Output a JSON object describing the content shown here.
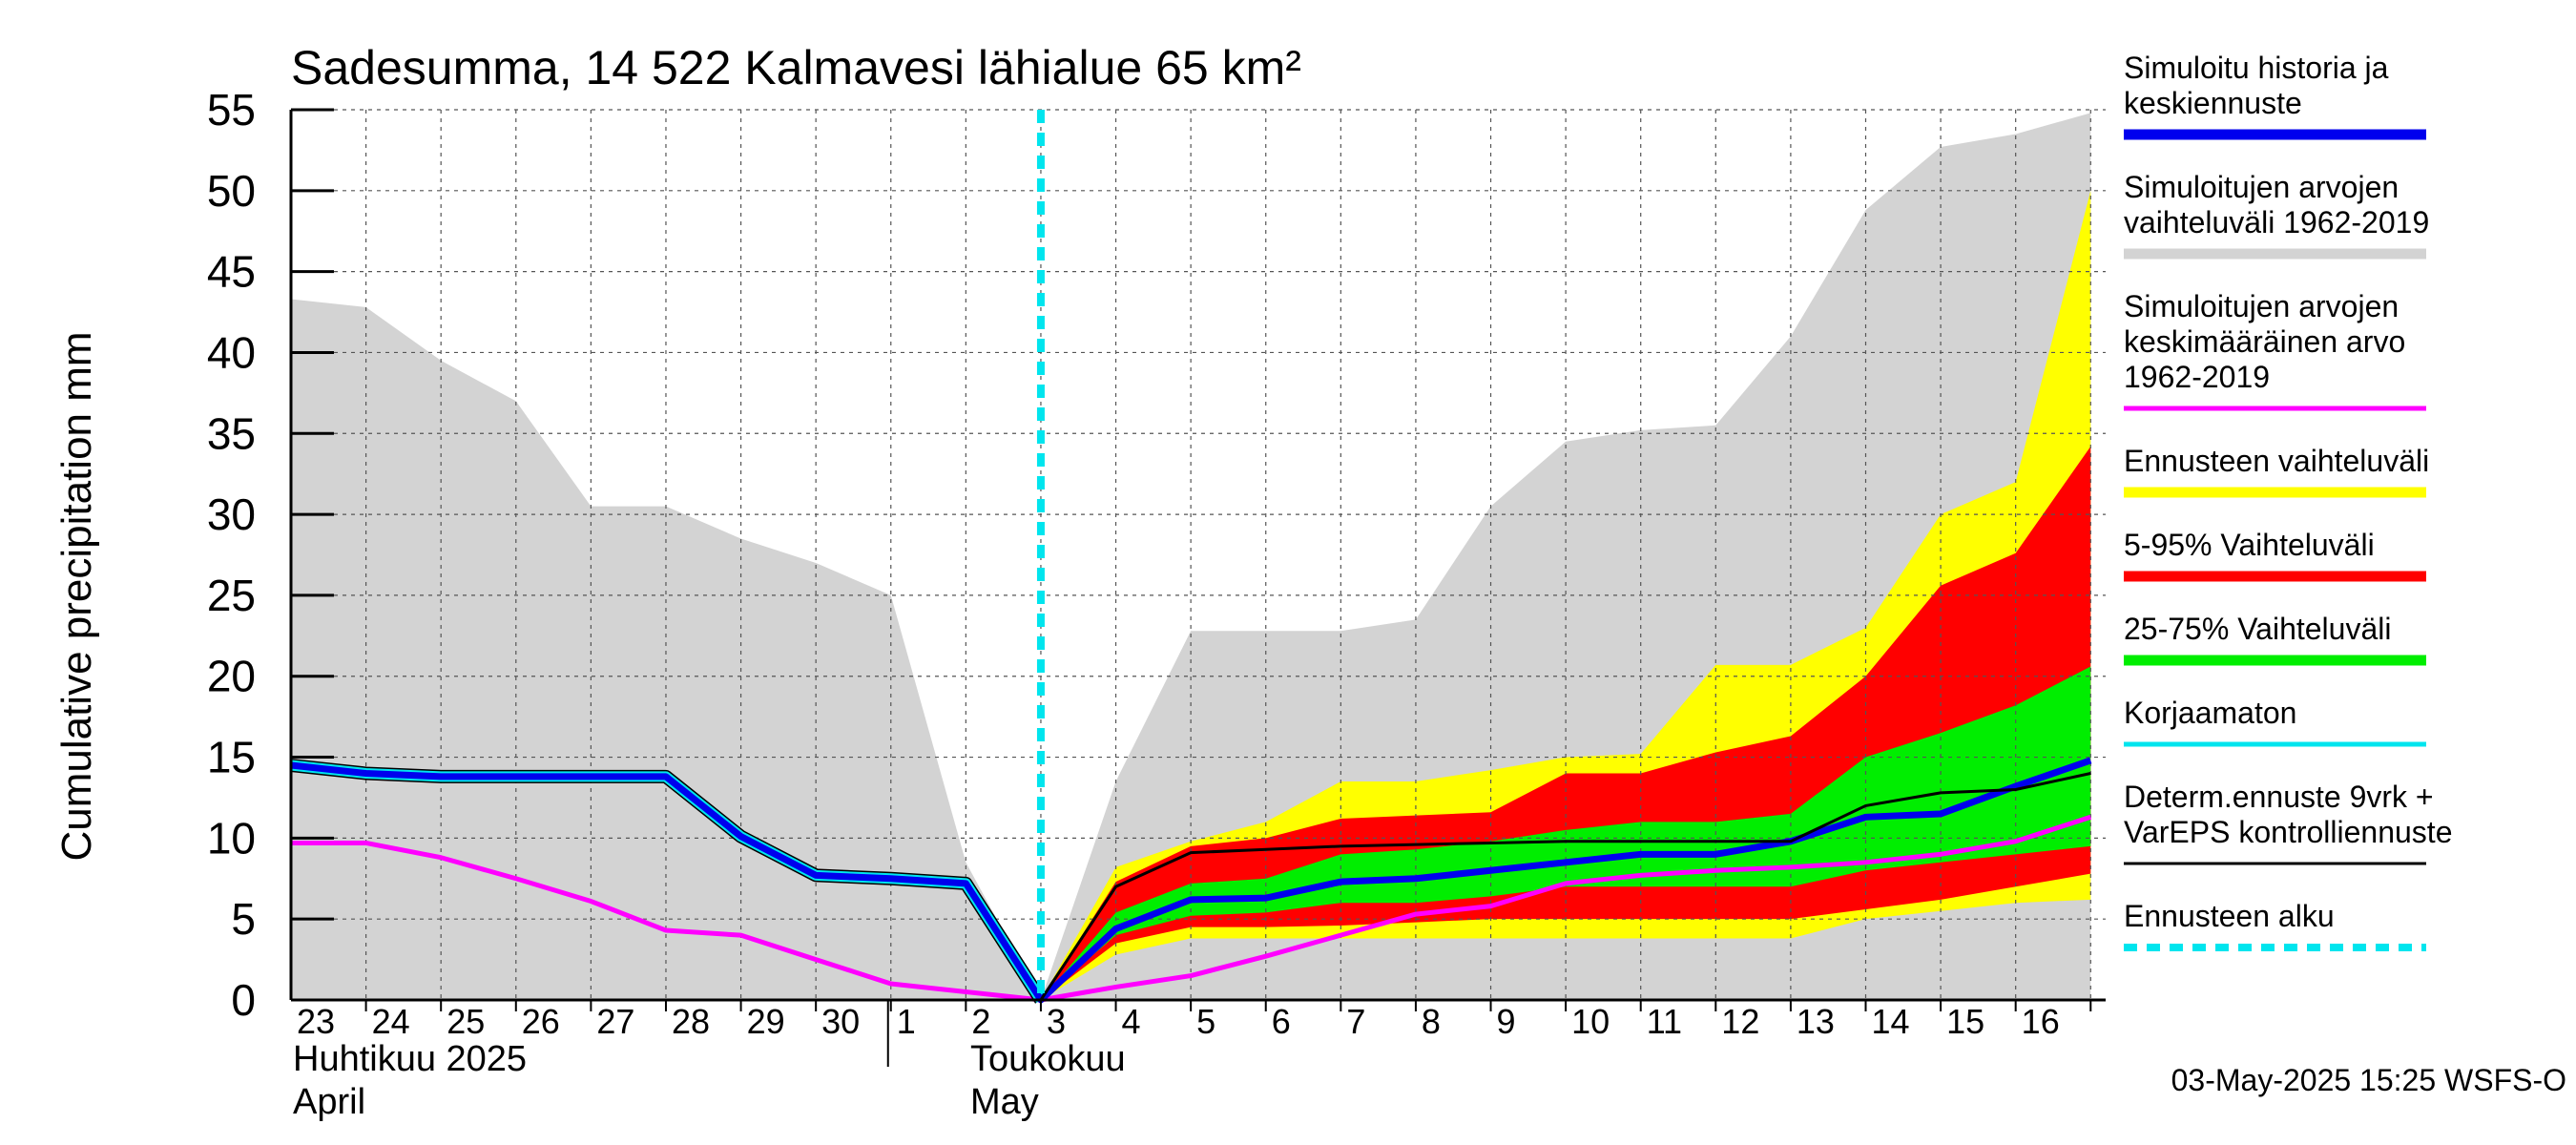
{
  "chart_data": {
    "type": "area",
    "title": "Sadesumma, 14 522 Kalmavesi lähialue 65 km²",
    "ylabel": "Cumulative precipitation   mm",
    "ylim": [
      0,
      55
    ],
    "yticks": [
      0,
      5,
      10,
      15,
      20,
      25,
      30,
      35,
      40,
      45,
      50,
      55
    ],
    "x_start_date": "2025-04-23",
    "x_days": 26,
    "day_labels": [
      {
        "i": 0,
        "label": "23"
      },
      {
        "i": 1,
        "label": "24"
      },
      {
        "i": 2,
        "label": "25"
      },
      {
        "i": 3,
        "label": "26"
      },
      {
        "i": 4,
        "label": "27"
      },
      {
        "i": 5,
        "label": "28"
      },
      {
        "i": 6,
        "label": "29"
      },
      {
        "i": 7,
        "label": "30"
      },
      {
        "i": 8,
        "label": "1"
      },
      {
        "i": 9,
        "label": "2"
      },
      {
        "i": 10,
        "label": "3"
      },
      {
        "i": 11,
        "label": "4"
      },
      {
        "i": 12,
        "label": "5"
      },
      {
        "i": 13,
        "label": "6"
      },
      {
        "i": 14,
        "label": "7"
      },
      {
        "i": 15,
        "label": "8"
      },
      {
        "i": 16,
        "label": "9"
      },
      {
        "i": 17,
        "label": "10"
      },
      {
        "i": 18,
        "label": "11"
      },
      {
        "i": 19,
        "label": "12"
      },
      {
        "i": 20,
        "label": "13"
      },
      {
        "i": 21,
        "label": "14"
      },
      {
        "i": 22,
        "label": "15"
      },
      {
        "i": 23,
        "label": "16"
      }
    ],
    "month_labels": {
      "april_fi": "Huhtikuu  2025",
      "april_en": "April",
      "may_fi": "Toukokuu",
      "may_en": "May"
    },
    "forecast_start_index": 10,
    "series": [
      {
        "name": "Simuloitujen arvojen vaihteluväli 1962-2019",
        "kind": "band",
        "color": "#d3d3d3",
        "x": [
          0,
          1,
          2,
          3,
          4,
          5,
          6,
          7,
          8,
          9,
          10,
          11,
          12,
          13,
          14,
          15,
          16,
          17,
          18,
          19,
          20,
          21,
          22,
          23,
          24
        ],
        "upper": [
          43.3,
          42.8,
          39.5,
          37,
          30.5,
          30.5,
          28.5,
          27,
          25,
          8.5,
          0,
          13.5,
          22.8,
          22.8,
          22.8,
          23.5,
          30.5,
          34.5,
          35.2,
          35.5,
          41,
          48.8,
          52.7,
          53.5,
          54.8
        ],
        "lower": [
          0,
          0,
          0,
          0,
          0,
          0,
          0,
          0,
          0,
          0,
          0,
          0,
          0,
          0,
          0,
          0,
          0,
          0,
          0,
          0,
          0,
          0,
          0,
          0,
          0
        ]
      },
      {
        "name": "Ennusteen vaihteluväli",
        "kind": "band",
        "color": "#ffff00",
        "x": [
          10,
          11,
          12,
          13,
          14,
          15,
          16,
          17,
          18,
          19,
          20,
          21,
          22,
          23,
          24
        ],
        "upper": [
          0,
          8.2,
          9.8,
          11,
          13.5,
          13.5,
          14.2,
          15,
          15.2,
          20.7,
          20.7,
          23,
          30,
          32,
          50
        ],
        "lower": [
          0,
          2.8,
          3.8,
          3.8,
          3.8,
          3.8,
          3.8,
          3.8,
          3.8,
          3.8,
          3.8,
          5,
          5.5,
          6,
          6.2
        ]
      },
      {
        "name": "5-95% Vaihteluväli",
        "kind": "band",
        "color": "#ff0000",
        "x": [
          10,
          11,
          12,
          13,
          14,
          15,
          16,
          17,
          18,
          19,
          20,
          21,
          22,
          23,
          24
        ],
        "upper": [
          0,
          7.3,
          9.5,
          10,
          11.2,
          11.4,
          11.6,
          14,
          14,
          15.3,
          16.3,
          20,
          25.6,
          27.6,
          34.2
        ],
        "lower": [
          0,
          3.5,
          4.5,
          4.5,
          4.6,
          4.8,
          5,
          5,
          5,
          5,
          5,
          5.6,
          6.2,
          7,
          7.8
        ]
      },
      {
        "name": "25-75% Vaihteluväli",
        "kind": "band",
        "color": "#00ee00",
        "x": [
          10,
          11,
          12,
          13,
          14,
          15,
          16,
          17,
          18,
          19,
          20,
          21,
          22,
          23,
          24
        ],
        "upper": [
          0,
          5.4,
          7.2,
          7.5,
          9,
          9.3,
          9.8,
          10.5,
          11,
          11,
          11.5,
          15,
          16.5,
          18.2,
          20.6
        ],
        "lower": [
          0,
          4,
          5.2,
          5.4,
          6,
          6,
          6.4,
          7,
          7,
          7,
          7,
          8,
          8.5,
          9,
          9.5
        ]
      },
      {
        "name": "Simuloitujen arvojen keskimääräinen arvo 1962-2019",
        "kind": "line",
        "color": "#ff00ff",
        "width": 5,
        "x": [
          0,
          1,
          2,
          3,
          4,
          5,
          6,
          7,
          8,
          9,
          10,
          11,
          12,
          13,
          14,
          15,
          16,
          17,
          18,
          19,
          20,
          21,
          22,
          23,
          24
        ],
        "values": [
          9.7,
          9.7,
          8.8,
          7.5,
          6.1,
          4.3,
          4,
          2.5,
          1,
          0.5,
          0,
          0.8,
          1.5,
          2.7,
          4,
          5.3,
          5.8,
          7.2,
          7.7,
          8,
          8.2,
          8.5,
          9,
          9.8,
          11.3
        ]
      },
      {
        "name": "Korjaamaton",
        "kind": "line",
        "color": "#00e5ee",
        "width": 11,
        "x": [
          0,
          1,
          2,
          3,
          4,
          5,
          6,
          7,
          8,
          9,
          10
        ],
        "values": [
          14.5,
          14,
          13.8,
          13.8,
          13.8,
          13.8,
          10.1,
          7.7,
          7.5,
          7.2,
          0
        ]
      },
      {
        "name": "Simuloitu historia ja keskiennuste",
        "kind": "line",
        "color": "#0000ee",
        "width": 7,
        "x": [
          0,
          1,
          2,
          3,
          4,
          5,
          6,
          7,
          8,
          9,
          10,
          11,
          12,
          13,
          14,
          15,
          16,
          17,
          18,
          19,
          20,
          21,
          22,
          23,
          24
        ],
        "values": [
          14.5,
          14,
          13.8,
          13.8,
          13.8,
          13.8,
          10.1,
          7.7,
          7.5,
          7.2,
          0,
          4.4,
          6.2,
          6.3,
          7.3,
          7.5,
          8,
          8.5,
          9,
          9,
          9.8,
          11.3,
          11.5,
          13.2,
          14.8
        ]
      },
      {
        "name": "Determ.ennuste 9vrk + VarEPS kontrolliennuste",
        "kind": "line",
        "color": "#000000",
        "width": 3,
        "x": [
          10,
          11,
          12,
          13,
          14,
          15,
          16,
          17,
          18,
          19,
          20,
          21,
          22,
          23,
          24
        ],
        "values": [
          0,
          7,
          9.1,
          9.3,
          9.5,
          9.6,
          9.7,
          9.8,
          9.8,
          9.8,
          9.8,
          12,
          12.8,
          13,
          14
        ]
      }
    ],
    "legend": {
      "position": "right",
      "items": [
        {
          "label": [
            "Simuloitu historia ja",
            "keskiennuste"
          ],
          "color": "#0000ee",
          "style": "thick"
        },
        {
          "label": [
            "Simuloitujen arvojen",
            "vaihteluväli 1962-2019"
          ],
          "color": "#d3d3d3",
          "style": "thick"
        },
        {
          "label": [
            "Simuloitujen arvojen",
            "keskimääräinen arvo",
            "   1962-2019"
          ],
          "color": "#ff00ff",
          "style": "line"
        },
        {
          "label": [
            "Ennusteen vaihteluväli"
          ],
          "color": "#ffff00",
          "style": "thick"
        },
        {
          "label": [
            "5-95% Vaihteluväli"
          ],
          "color": "#ff0000",
          "style": "thick"
        },
        {
          "label": [
            "25-75% Vaihteluväli"
          ],
          "color": "#00ee00",
          "style": "thick"
        },
        {
          "label": [
            "Korjaamaton"
          ],
          "color": "#00e5ee",
          "style": "line"
        },
        {
          "label": [
            "Determ.ennuste 9vrk +",
            "VarEPS kontrolliennuste"
          ],
          "color": "#000000",
          "style": "thin"
        },
        {
          "label": [
            "Ennusteen alku"
          ],
          "color": "#00e5ee",
          "style": "dashed"
        }
      ]
    },
    "footer": "03-May-2025 15:25 WSFS-O"
  }
}
